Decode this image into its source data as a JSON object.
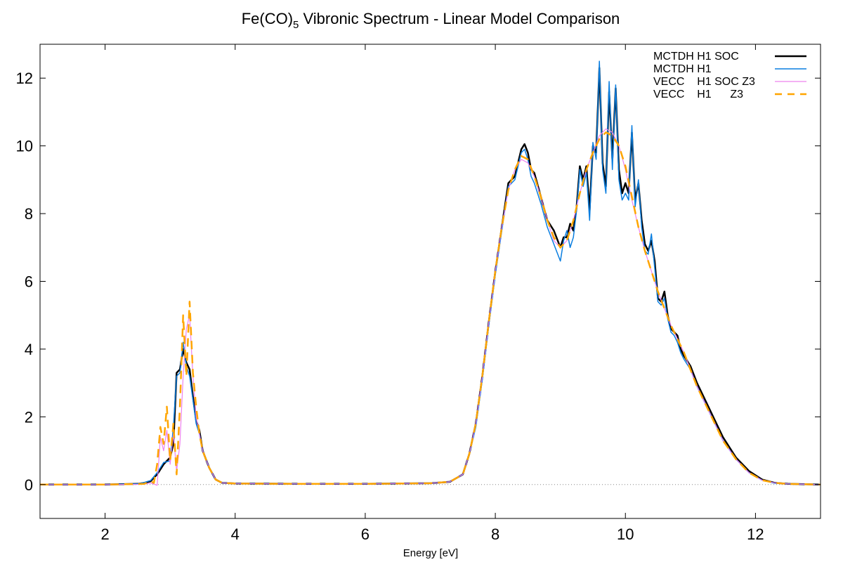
{
  "chart_data": {
    "type": "line",
    "title": "Fe(CO)",
    "title_subscript": "5",
    "title_suffix": " Vibronic Spectrum - Linear Model Comparison",
    "xlabel": "Energy [eV]",
    "ylabel": "",
    "xlim": [
      1,
      13
    ],
    "ylim": [
      -1,
      13
    ],
    "xticks": [
      2,
      4,
      6,
      8,
      10,
      12
    ],
    "yticks": [
      0,
      2,
      4,
      6,
      8,
      10,
      12
    ],
    "grid": false,
    "zero_line": true,
    "legend_position": "top-right",
    "series": [
      {
        "name": "MCTDH H1 SOC",
        "color": "#000000",
        "dash": "solid",
        "x": [
          1,
          2,
          2.5,
          2.6,
          2.7,
          2.8,
          2.9,
          3.0,
          3.05,
          3.1,
          3.15,
          3.2,
          3.25,
          3.3,
          3.35,
          3.4,
          3.45,
          3.5,
          3.6,
          3.7,
          3.8,
          4.0,
          5,
          6,
          7,
          7.3,
          7.5,
          7.6,
          7.7,
          7.8,
          7.9,
          8.0,
          8.1,
          8.2,
          8.3,
          8.4,
          8.45,
          8.5,
          8.55,
          8.6,
          8.7,
          8.8,
          8.9,
          9.0,
          9.05,
          9.1,
          9.15,
          9.2,
          9.25,
          9.3,
          9.35,
          9.4,
          9.45,
          9.5,
          9.55,
          9.6,
          9.65,
          9.7,
          9.75,
          9.8,
          9.85,
          9.9,
          9.95,
          10.0,
          10.05,
          10.1,
          10.15,
          10.2,
          10.25,
          10.3,
          10.35,
          10.4,
          10.45,
          10.5,
          10.55,
          10.6,
          10.65,
          10.7,
          10.75,
          10.8,
          10.85,
          10.9,
          11.0,
          11.1,
          11.3,
          11.5,
          11.7,
          11.9,
          12.1,
          12.3,
          12.5,
          13
        ],
        "values": [
          0,
          0,
          0.02,
          0.05,
          0.1,
          0.3,
          0.6,
          0.8,
          1.2,
          3.3,
          3.4,
          4.0,
          3.6,
          3.4,
          2.6,
          1.9,
          1.6,
          1.0,
          0.5,
          0.15,
          0.05,
          0.03,
          0.02,
          0.02,
          0.04,
          0.08,
          0.3,
          0.9,
          1.8,
          3.2,
          4.8,
          6.3,
          7.6,
          8.9,
          9.1,
          9.9,
          10.05,
          9.8,
          9.3,
          9.2,
          8.5,
          7.8,
          7.5,
          7.0,
          7.3,
          7.3,
          7.7,
          7.5,
          8.2,
          9.4,
          9.0,
          9.4,
          8.1,
          10.0,
          9.8,
          12.3,
          9.5,
          8.8,
          11.6,
          9.6,
          11.7,
          9.3,
          8.6,
          8.9,
          8.6,
          10.4,
          8.4,
          8.9,
          7.8,
          7.1,
          6.9,
          7.2,
          6.6,
          5.5,
          5.4,
          5.7,
          5.0,
          4.6,
          4.5,
          4.4,
          4.0,
          3.8,
          3.5,
          3.0,
          2.2,
          1.4,
          0.8,
          0.4,
          0.15,
          0.05,
          0.02,
          0
        ]
      },
      {
        "name": "MCTDH H1",
        "color": "#0a7ee0",
        "dash": "solid",
        "x": [
          1,
          2,
          2.5,
          2.6,
          2.7,
          2.8,
          2.9,
          3.0,
          3.05,
          3.1,
          3.15,
          3.2,
          3.25,
          3.3,
          3.35,
          3.4,
          3.45,
          3.5,
          3.6,
          3.7,
          3.8,
          4.0,
          5,
          6,
          7,
          7.3,
          7.5,
          7.6,
          7.7,
          7.8,
          7.9,
          8.0,
          8.1,
          8.2,
          8.3,
          8.4,
          8.45,
          8.5,
          8.55,
          8.6,
          8.7,
          8.8,
          8.9,
          9.0,
          9.05,
          9.1,
          9.15,
          9.2,
          9.25,
          9.3,
          9.35,
          9.4,
          9.45,
          9.5,
          9.55,
          9.6,
          9.65,
          9.7,
          9.75,
          9.8,
          9.85,
          9.9,
          9.95,
          10.0,
          10.05,
          10.1,
          10.15,
          10.2,
          10.25,
          10.3,
          10.35,
          10.4,
          10.45,
          10.5,
          10.55,
          10.6,
          10.65,
          10.7,
          10.75,
          10.8,
          10.85,
          10.9,
          11.0,
          11.1,
          11.3,
          11.5,
          11.7,
          11.9,
          12.1,
          12.3,
          12.5,
          13
        ],
        "values": [
          0,
          0,
          0.02,
          0.06,
          0.12,
          0.35,
          0.65,
          0.7,
          1.7,
          3.2,
          3.3,
          4.2,
          3.5,
          3.2,
          2.5,
          1.8,
          1.5,
          1.0,
          0.5,
          0.15,
          0.05,
          0.03,
          0.02,
          0.02,
          0.04,
          0.08,
          0.3,
          0.9,
          1.7,
          3.1,
          4.7,
          6.2,
          7.5,
          8.8,
          9.0,
          9.8,
          9.9,
          9.6,
          9.1,
          8.9,
          8.3,
          7.6,
          7.1,
          6.6,
          7.2,
          7.5,
          7.0,
          7.3,
          8.1,
          9.3,
          8.8,
          9.2,
          7.8,
          10.1,
          9.6,
          12.5,
          9.3,
          8.6,
          11.9,
          9.3,
          11.8,
          9.0,
          8.4,
          8.6,
          8.4,
          10.6,
          8.2,
          9.0,
          7.6,
          6.9,
          6.8,
          7.4,
          6.4,
          5.4,
          5.3,
          5.5,
          4.9,
          4.5,
          4.4,
          4.2,
          3.9,
          3.7,
          3.4,
          2.9,
          2.1,
          1.3,
          0.75,
          0.35,
          0.13,
          0.04,
          0.02,
          0
        ]
      },
      {
        "name": "VECC    H1 SOC Z3",
        "color": "#ee82ee",
        "dash": "solid",
        "x": [
          1,
          2,
          2.6,
          2.7,
          2.8,
          2.85,
          2.9,
          2.95,
          3.0,
          3.05,
          3.1,
          3.15,
          3.2,
          3.25,
          3.3,
          3.35,
          3.4,
          3.45,
          3.5,
          3.6,
          3.7,
          3.8,
          4.0,
          5,
          6,
          7,
          7.3,
          7.5,
          7.6,
          7.7,
          7.8,
          7.9,
          8.0,
          8.1,
          8.2,
          8.3,
          8.4,
          8.5,
          8.6,
          8.7,
          8.8,
          8.9,
          9.0,
          9.1,
          9.2,
          9.3,
          9.4,
          9.5,
          9.6,
          9.7,
          9.8,
          9.9,
          10.0,
          10.1,
          10.2,
          10.3,
          10.4,
          10.5,
          10.6,
          10.7,
          10.8,
          10.9,
          11.0,
          11.1,
          11.3,
          11.5,
          11.7,
          11.9,
          12.1,
          12.3,
          12.5,
          13
        ],
        "values": [
          0,
          0,
          0.01,
          0.05,
          -0.02,
          1.4,
          1.0,
          1.6,
          0.6,
          1.5,
          0.4,
          1.2,
          3.2,
          4.6,
          5.0,
          3.2,
          2.0,
          1.5,
          1.0,
          0.5,
          0.15,
          0.05,
          0.03,
          0.02,
          0.02,
          0.04,
          0.08,
          0.3,
          0.9,
          1.8,
          3.2,
          4.8,
          6.3,
          7.6,
          8.7,
          9.3,
          9.6,
          9.5,
          9.1,
          8.5,
          7.8,
          7.2,
          7.0,
          7.2,
          7.8,
          8.6,
          9.3,
          9.8,
          10.3,
          10.5,
          10.4,
          10.0,
          9.3,
          8.4,
          7.6,
          6.9,
          6.3,
          5.7,
          5.2,
          4.7,
          4.3,
          3.9,
          3.4,
          2.9,
          2.1,
          1.3,
          0.75,
          0.35,
          0.13,
          0.05,
          0.02,
          0
        ]
      },
      {
        "name": "VECC    H1      Z3",
        "color": "#ffa500",
        "dash": "dashed",
        "x": [
          1,
          2,
          2.6,
          2.7,
          2.75,
          2.8,
          2.85,
          2.9,
          2.95,
          3.0,
          3.05,
          3.1,
          3.15,
          3.2,
          3.25,
          3.3,
          3.35,
          3.4,
          3.45,
          3.5,
          3.6,
          3.7,
          3.8,
          4.0,
          5,
          6,
          7,
          7.3,
          7.5,
          7.6,
          7.7,
          7.8,
          7.9,
          8.0,
          8.1,
          8.2,
          8.3,
          8.4,
          8.5,
          8.6,
          8.7,
          8.8,
          8.9,
          9.0,
          9.1,
          9.2,
          9.3,
          9.4,
          9.5,
          9.6,
          9.7,
          9.8,
          9.9,
          10.0,
          10.1,
          10.2,
          10.3,
          10.4,
          10.5,
          10.6,
          10.7,
          10.8,
          10.9,
          11.0,
          11.1,
          11.3,
          11.5,
          11.7,
          11.9,
          12.1,
          12.3,
          12.5,
          13
        ],
        "values": [
          0,
          0,
          0.02,
          0.1,
          0.05,
          0.6,
          1.7,
          1.2,
          2.3,
          0.7,
          1.8,
          0.3,
          2.3,
          5.0,
          3.2,
          5.4,
          3.3,
          2.3,
          1.5,
          1.0,
          0.5,
          0.15,
          0.05,
          0.03,
          0.02,
          0.02,
          0.04,
          0.08,
          0.3,
          0.9,
          1.8,
          3.2,
          4.8,
          6.3,
          7.6,
          8.7,
          9.3,
          9.7,
          9.6,
          9.1,
          8.5,
          7.8,
          7.3,
          7.0,
          7.2,
          7.8,
          8.6,
          9.3,
          9.8,
          10.2,
          10.4,
          10.3,
          10.0,
          9.4,
          8.5,
          7.6,
          6.9,
          6.3,
          5.7,
          5.2,
          4.7,
          4.3,
          3.9,
          3.4,
          2.9,
          2.1,
          1.3,
          0.75,
          0.35,
          0.13,
          0.05,
          0.02,
          0
        ]
      }
    ]
  }
}
